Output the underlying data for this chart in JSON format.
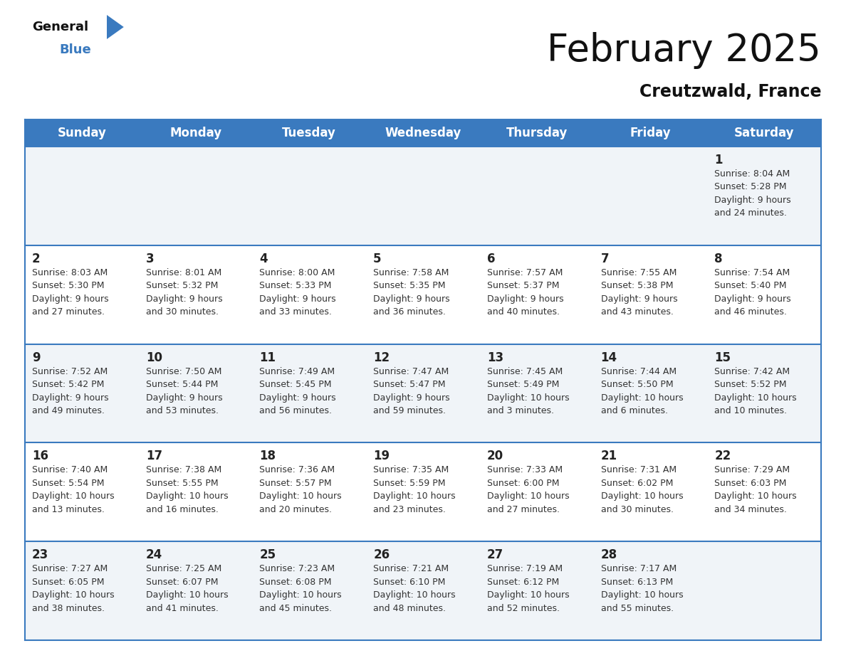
{
  "title": "February 2025",
  "subtitle": "Creutzwald, France",
  "header_color": "#3a7abf",
  "header_text_color": "#ffffff",
  "cell_bg_even": "#f0f4f8",
  "cell_bg_odd": "#ffffff",
  "day_headers": [
    "Sunday",
    "Monday",
    "Tuesday",
    "Wednesday",
    "Thursday",
    "Friday",
    "Saturday"
  ],
  "days": [
    {
      "day": 1,
      "col": 6,
      "row": 0,
      "sunrise": "8:04 AM",
      "sunset": "5:28 PM",
      "daylight": "9 hours and 24 minutes."
    },
    {
      "day": 2,
      "col": 0,
      "row": 1,
      "sunrise": "8:03 AM",
      "sunset": "5:30 PM",
      "daylight": "9 hours and 27 minutes."
    },
    {
      "day": 3,
      "col": 1,
      "row": 1,
      "sunrise": "8:01 AM",
      "sunset": "5:32 PM",
      "daylight": "9 hours and 30 minutes."
    },
    {
      "day": 4,
      "col": 2,
      "row": 1,
      "sunrise": "8:00 AM",
      "sunset": "5:33 PM",
      "daylight": "9 hours and 33 minutes."
    },
    {
      "day": 5,
      "col": 3,
      "row": 1,
      "sunrise": "7:58 AM",
      "sunset": "5:35 PM",
      "daylight": "9 hours and 36 minutes."
    },
    {
      "day": 6,
      "col": 4,
      "row": 1,
      "sunrise": "7:57 AM",
      "sunset": "5:37 PM",
      "daylight": "9 hours and 40 minutes."
    },
    {
      "day": 7,
      "col": 5,
      "row": 1,
      "sunrise": "7:55 AM",
      "sunset": "5:38 PM",
      "daylight": "9 hours and 43 minutes."
    },
    {
      "day": 8,
      "col": 6,
      "row": 1,
      "sunrise": "7:54 AM",
      "sunset": "5:40 PM",
      "daylight": "9 hours and 46 minutes."
    },
    {
      "day": 9,
      "col": 0,
      "row": 2,
      "sunrise": "7:52 AM",
      "sunset": "5:42 PM",
      "daylight": "9 hours and 49 minutes."
    },
    {
      "day": 10,
      "col": 1,
      "row": 2,
      "sunrise": "7:50 AM",
      "sunset": "5:44 PM",
      "daylight": "9 hours and 53 minutes."
    },
    {
      "day": 11,
      "col": 2,
      "row": 2,
      "sunrise": "7:49 AM",
      "sunset": "5:45 PM",
      "daylight": "9 hours and 56 minutes."
    },
    {
      "day": 12,
      "col": 3,
      "row": 2,
      "sunrise": "7:47 AM",
      "sunset": "5:47 PM",
      "daylight": "9 hours and 59 minutes."
    },
    {
      "day": 13,
      "col": 4,
      "row": 2,
      "sunrise": "7:45 AM",
      "sunset": "5:49 PM",
      "daylight": "10 hours and 3 minutes."
    },
    {
      "day": 14,
      "col": 5,
      "row": 2,
      "sunrise": "7:44 AM",
      "sunset": "5:50 PM",
      "daylight": "10 hours and 6 minutes."
    },
    {
      "day": 15,
      "col": 6,
      "row": 2,
      "sunrise": "7:42 AM",
      "sunset": "5:52 PM",
      "daylight": "10 hours and 10 minutes."
    },
    {
      "day": 16,
      "col": 0,
      "row": 3,
      "sunrise": "7:40 AM",
      "sunset": "5:54 PM",
      "daylight": "10 hours and 13 minutes."
    },
    {
      "day": 17,
      "col": 1,
      "row": 3,
      "sunrise": "7:38 AM",
      "sunset": "5:55 PM",
      "daylight": "10 hours and 16 minutes."
    },
    {
      "day": 18,
      "col": 2,
      "row": 3,
      "sunrise": "7:36 AM",
      "sunset": "5:57 PM",
      "daylight": "10 hours and 20 minutes."
    },
    {
      "day": 19,
      "col": 3,
      "row": 3,
      "sunrise": "7:35 AM",
      "sunset": "5:59 PM",
      "daylight": "10 hours and 23 minutes."
    },
    {
      "day": 20,
      "col": 4,
      "row": 3,
      "sunrise": "7:33 AM",
      "sunset": "6:00 PM",
      "daylight": "10 hours and 27 minutes."
    },
    {
      "day": 21,
      "col": 5,
      "row": 3,
      "sunrise": "7:31 AM",
      "sunset": "6:02 PM",
      "daylight": "10 hours and 30 minutes."
    },
    {
      "day": 22,
      "col": 6,
      "row": 3,
      "sunrise": "7:29 AM",
      "sunset": "6:03 PM",
      "daylight": "10 hours and 34 minutes."
    },
    {
      "day": 23,
      "col": 0,
      "row": 4,
      "sunrise": "7:27 AM",
      "sunset": "6:05 PM",
      "daylight": "10 hours and 38 minutes."
    },
    {
      "day": 24,
      "col": 1,
      "row": 4,
      "sunrise": "7:25 AM",
      "sunset": "6:07 PM",
      "daylight": "10 hours and 41 minutes."
    },
    {
      "day": 25,
      "col": 2,
      "row": 4,
      "sunrise": "7:23 AM",
      "sunset": "6:08 PM",
      "daylight": "10 hours and 45 minutes."
    },
    {
      "day": 26,
      "col": 3,
      "row": 4,
      "sunrise": "7:21 AM",
      "sunset": "6:10 PM",
      "daylight": "10 hours and 48 minutes."
    },
    {
      "day": 27,
      "col": 4,
      "row": 4,
      "sunrise": "7:19 AM",
      "sunset": "6:12 PM",
      "daylight": "10 hours and 52 minutes."
    },
    {
      "day": 28,
      "col": 5,
      "row": 4,
      "sunrise": "7:17 AM",
      "sunset": "6:13 PM",
      "daylight": "10 hours and 55 minutes."
    }
  ],
  "num_rows": 5,
  "num_cols": 7,
  "logo_text_general": "General",
  "logo_text_blue": "Blue",
  "logo_triangle_color": "#3a7abf",
  "title_fontsize": 38,
  "subtitle_fontsize": 17,
  "header_fontsize": 12,
  "day_num_fontsize": 12,
  "cell_text_fontsize": 9,
  "border_line_color": "#3a7abf",
  "text_color": "#333333"
}
